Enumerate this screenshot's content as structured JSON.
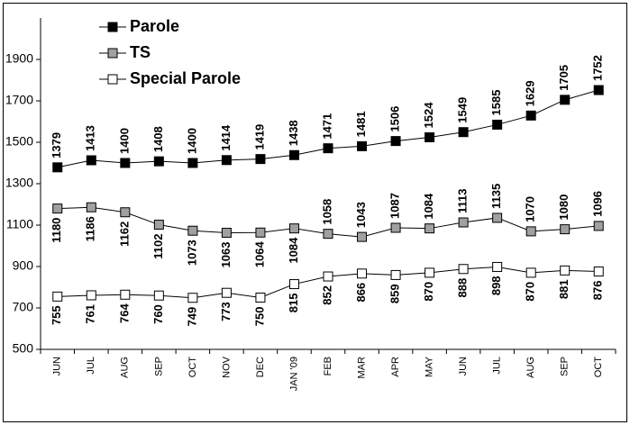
{
  "chart_data": {
    "type": "line",
    "categories": [
      "JUN",
      "JUL",
      "AUG",
      "SEP",
      "OCT",
      "NOV",
      "DEC",
      "JAN '09",
      "FEB",
      "MAR",
      "APR",
      "MAY",
      "JUN",
      "JUL",
      "AUG",
      "SEP",
      "OCT"
    ],
    "series": [
      {
        "name": "Parole",
        "color": "#000000",
        "values": [
          1379,
          1413,
          1400,
          1408,
          1400,
          1414,
          1419,
          1438,
          1471,
          1481,
          1506,
          1524,
          1549,
          1585,
          1629,
          1705,
          1752
        ]
      },
      {
        "name": "TS",
        "color": "#a0a0a0",
        "values": [
          1180,
          1186,
          1162,
          1102,
          1073,
          1063,
          1064,
          1084,
          1058,
          1043,
          1087,
          1084,
          1113,
          1135,
          1070,
          1080,
          1096
        ]
      },
      {
        "name": "Special Parole",
        "color": "#ffffff",
        "values": [
          755,
          761,
          764,
          760,
          749,
          773,
          750,
          815,
          852,
          866,
          859,
          870,
          888,
          898,
          870,
          881,
          876
        ]
      }
    ],
    "ylim": [
      500,
      2100
    ],
    "yticks": [
      500,
      700,
      900,
      1100,
      1300,
      1500,
      1700,
      1900
    ],
    "legend": "top-left"
  }
}
